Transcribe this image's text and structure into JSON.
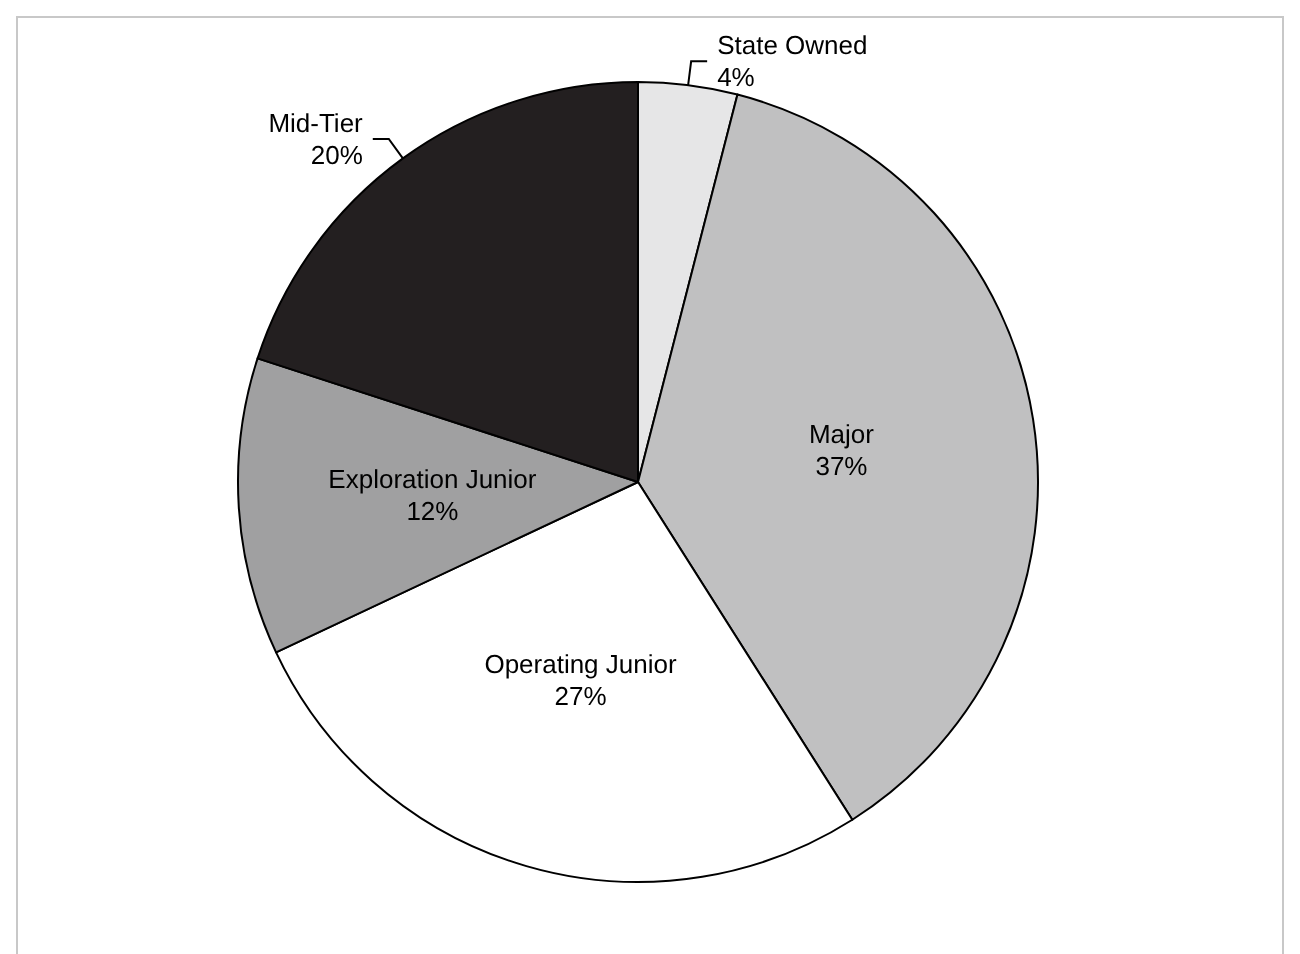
{
  "chart_data": {
    "type": "pie",
    "categories": [
      "State Owned",
      "Major",
      "Operating Junior",
      "Exploration Junior",
      "Mid-Tier"
    ],
    "values": [
      4,
      37,
      27,
      12,
      20
    ],
    "colors": [
      "#e6e6e7",
      "#c0c0c1",
      "#ffffff",
      "#a0a0a1",
      "#231f20"
    ],
    "value_labels": [
      "4%",
      "37%",
      "27%",
      "12%",
      "20%"
    ],
    "legend": false
  }
}
